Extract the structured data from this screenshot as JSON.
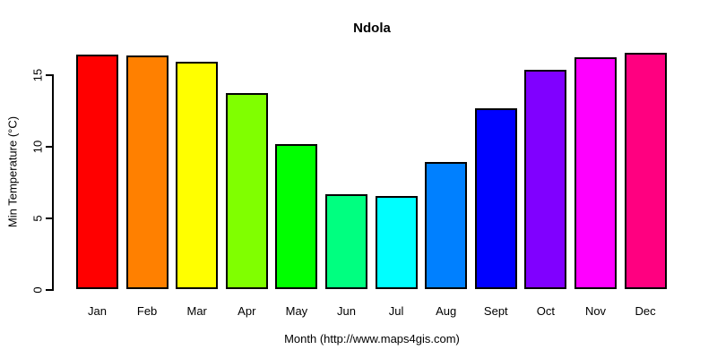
{
  "chart_data": {
    "type": "bar",
    "title": "Ndola",
    "xlabel": "Month (http://www.maps4gis.com)",
    "ylabel": "Min Temperature (°C)",
    "categories": [
      "Jan",
      "Feb",
      "Mar",
      "Apr",
      "May",
      "Jun",
      "Jul",
      "Aug",
      "Sept",
      "Oct",
      "Nov",
      "Dec"
    ],
    "values": [
      16.4,
      16.3,
      15.9,
      13.7,
      10.1,
      6.6,
      6.5,
      8.9,
      12.6,
      15.3,
      16.2,
      16.5
    ],
    "bar_colors": [
      "#FF0000",
      "#FF8000",
      "#FFFF00",
      "#80FF00",
      "#00FF00",
      "#00FF80",
      "#00FFFF",
      "#0080FF",
      "#0000FF",
      "#8000FF",
      "#FF00FF",
      "#FF0080"
    ],
    "bar_border_color": "#000000",
    "axis_color": "#000000",
    "background_color": "#FFFFFF",
    "ylim": [
      0,
      17
    ],
    "yticks": [
      0,
      5,
      10,
      15
    ],
    "grid": "off",
    "legend": "none"
  }
}
